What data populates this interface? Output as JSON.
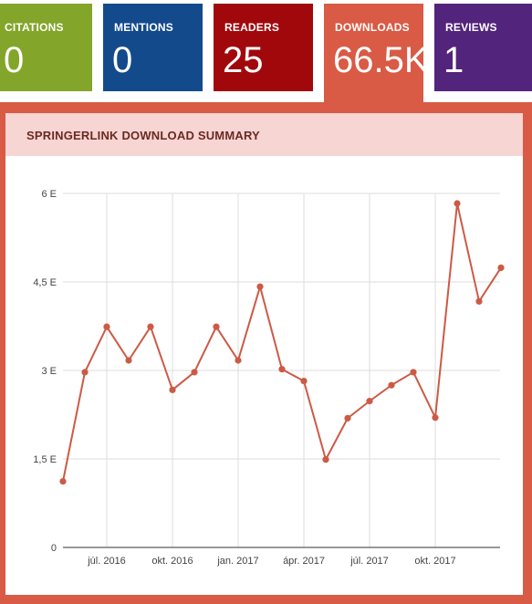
{
  "tiles": [
    {
      "id": "citations",
      "label": "CITATIONS",
      "value": "0",
      "color": "#83a52a"
    },
    {
      "id": "mentions",
      "label": "MENTIONS",
      "value": "0",
      "color": "#134a8c"
    },
    {
      "id": "readers",
      "label": "READERS",
      "value": "25",
      "color": "#a1080c"
    },
    {
      "id": "downloads",
      "label": "DOWNLOADS",
      "value": "66.5K",
      "color": "#d95a45",
      "selected": true
    },
    {
      "id": "reviews",
      "label": "REVIEWS",
      "value": "1",
      "color": "#53247b"
    }
  ],
  "panel": {
    "title": "SPRINGERLINK DOWNLOAD SUMMARY"
  },
  "chart_data": {
    "type": "line",
    "title": "",
    "xlabel": "",
    "ylabel": "",
    "ylim": [
      0,
      6000
    ],
    "y_ticks": [
      0,
      1500,
      3000,
      4500,
      6000
    ],
    "y_tick_labels": [
      "0",
      "1,5 E",
      "3 E",
      "4,5 E",
      "6 E"
    ],
    "x_tick_labels": [
      "júl. 2016",
      "okt. 2016",
      "jan. 2017",
      "ápr. 2017",
      "júl. 2017",
      "okt. 2017"
    ],
    "x_tick_months": [
      "2016-07",
      "2016-10",
      "2017-01",
      "2017-04",
      "2017-07",
      "2017-10"
    ],
    "grid": true,
    "line_color": "#cc5a45",
    "series": [
      {
        "x": [
          "2016-05",
          "2016-06",
          "2016-07",
          "2016-08",
          "2016-09",
          "2016-10",
          "2016-11",
          "2016-12",
          "2017-01",
          "2017-02",
          "2017-03",
          "2017-04",
          "2017-05",
          "2017-06",
          "2017-07",
          "2017-08",
          "2017-09",
          "2017-10",
          "2017-11",
          "2017-12",
          "2018-01"
        ],
        "values": [
          1120,
          2970,
          3740,
          3170,
          3740,
          2670,
          2970,
          3740,
          3170,
          4420,
          3020,
          2820,
          1490,
          2190,
          2480,
          2750,
          2970,
          2200,
          5830,
          4170,
          4740
        ]
      }
    ]
  }
}
